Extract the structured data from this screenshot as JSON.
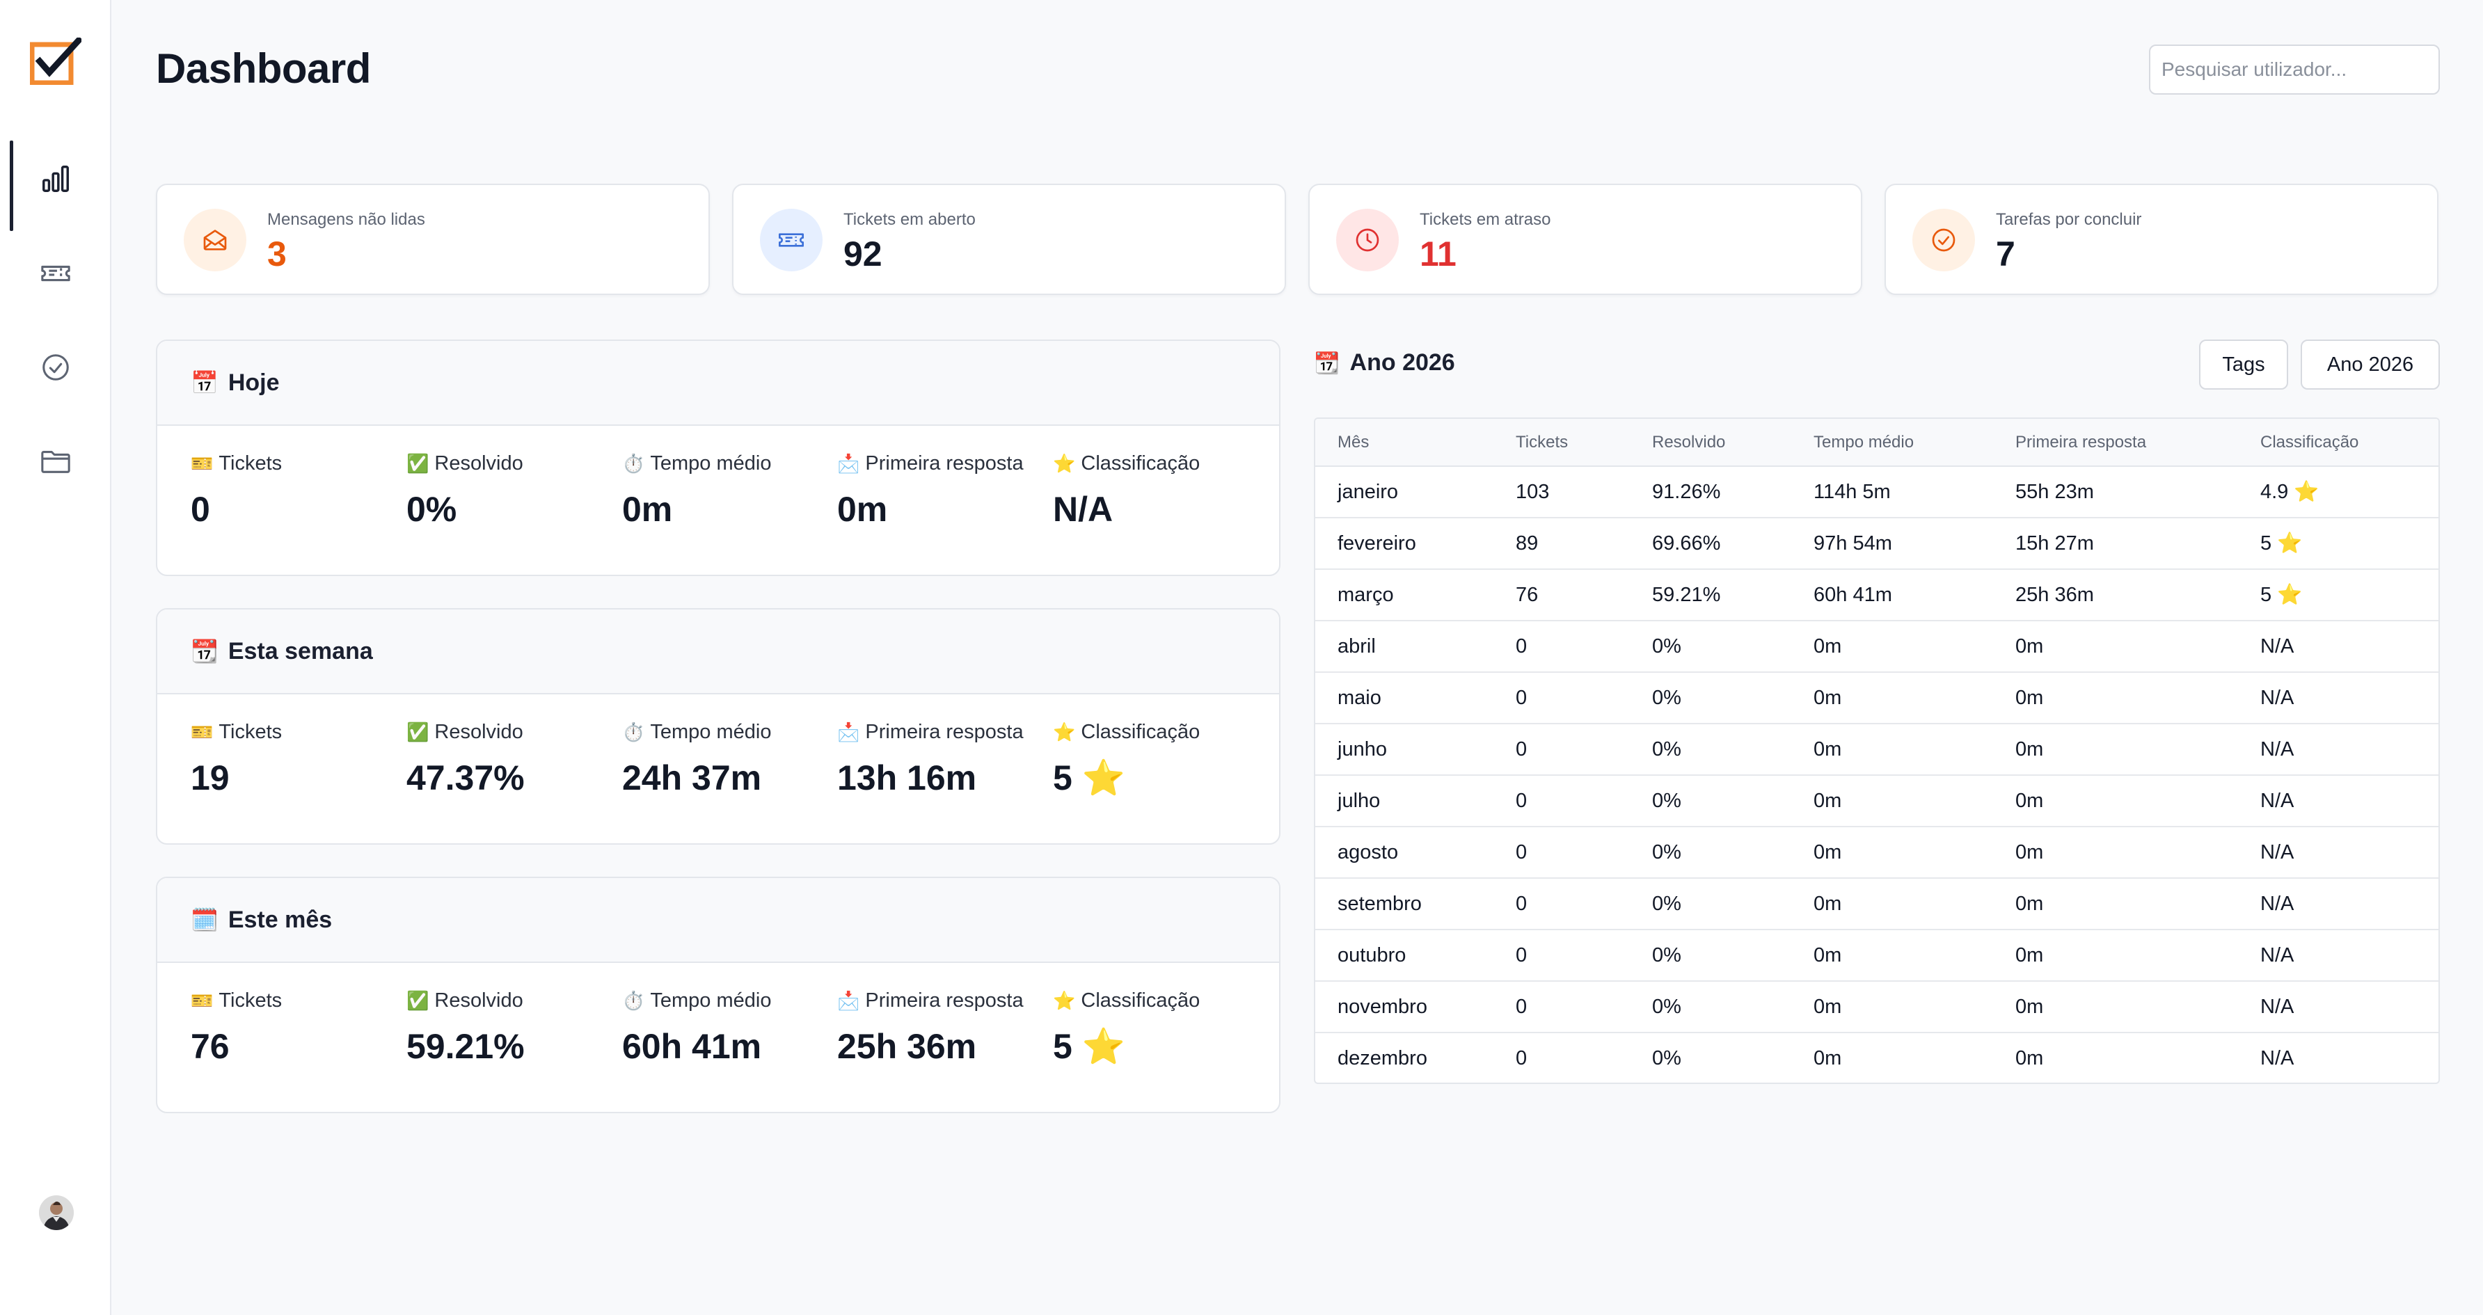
{
  "app": {
    "title": "Dashboard",
    "search_placeholder": "Pesquisar utilizador..."
  },
  "sidebar": {
    "items": [
      {
        "icon": "bar-chart-icon",
        "active": true
      },
      {
        "icon": "ticket-icon",
        "active": false
      },
      {
        "icon": "check-circle-icon",
        "active": false
      },
      {
        "icon": "folder-icon",
        "active": false
      }
    ]
  },
  "stats": [
    {
      "label": "Mensagens não lidas",
      "value": "3",
      "icon": "mail-open-icon",
      "color": "#e8590c",
      "bg": "#fff1e4"
    },
    {
      "label": "Tickets em aberto",
      "value": "92",
      "icon": "ticket-icon",
      "color": "#121826",
      "bg": "#e6efff"
    },
    {
      "label": "Tickets em atraso",
      "value": "11",
      "icon": "clock-icon",
      "color": "#e03131",
      "bg": "#ffe6e6"
    },
    {
      "label": "Tarefas por concluir",
      "value": "7",
      "icon": "check-circle-icon",
      "color": "#121826",
      "bg": "#fff1e4"
    }
  ],
  "metric_labels": {
    "tickets": "Tickets",
    "resolved": "Resolvido",
    "avg_time": "Tempo médio",
    "first_response": "Primeira resposta",
    "rating": "Classificação"
  },
  "periods": [
    {
      "title": "Hoje",
      "emoji": "📅",
      "tickets": "0",
      "resolved": "0%",
      "avg_time": "0m",
      "first_response": "0m",
      "rating": "N/A"
    },
    {
      "title": "Esta semana",
      "emoji": "📆",
      "tickets": "19",
      "resolved": "47.37%",
      "avg_time": "24h 37m",
      "first_response": "13h 16m",
      "rating": "5 ⭐"
    },
    {
      "title": "Este mês",
      "emoji": "🗓️",
      "tickets": "76",
      "resolved": "59.21%",
      "avg_time": "60h 41m",
      "first_response": "25h 36m",
      "rating": "5 ⭐"
    }
  ],
  "year": {
    "title": "Ano 2026",
    "emoji": "📆",
    "buttons": {
      "tags": "Tags",
      "year": "Ano 2026"
    },
    "columns": [
      "Mês",
      "Tickets",
      "Resolvido",
      "Tempo médio",
      "Primeira resposta",
      "Classificação"
    ],
    "rows": [
      [
        "janeiro",
        "103",
        "91.26%",
        "114h 5m",
        "55h 23m",
        "4.9 ⭐"
      ],
      [
        "fevereiro",
        "89",
        "69.66%",
        "97h 54m",
        "15h 27m",
        "5 ⭐"
      ],
      [
        "março",
        "76",
        "59.21%",
        "60h 41m",
        "25h 36m",
        "5 ⭐"
      ],
      [
        "abril",
        "0",
        "0%",
        "0m",
        "0m",
        "N/A"
      ],
      [
        "maio",
        "0",
        "0%",
        "0m",
        "0m",
        "N/A"
      ],
      [
        "junho",
        "0",
        "0%",
        "0m",
        "0m",
        "N/A"
      ],
      [
        "julho",
        "0",
        "0%",
        "0m",
        "0m",
        "N/A"
      ],
      [
        "agosto",
        "0",
        "0%",
        "0m",
        "0m",
        "N/A"
      ],
      [
        "setembro",
        "0",
        "0%",
        "0m",
        "0m",
        "N/A"
      ],
      [
        "outubro",
        "0",
        "0%",
        "0m",
        "0m",
        "N/A"
      ],
      [
        "novembro",
        "0",
        "0%",
        "0m",
        "0m",
        "N/A"
      ],
      [
        "dezembro",
        "0",
        "0%",
        "0m",
        "0m",
        "N/A"
      ]
    ]
  }
}
